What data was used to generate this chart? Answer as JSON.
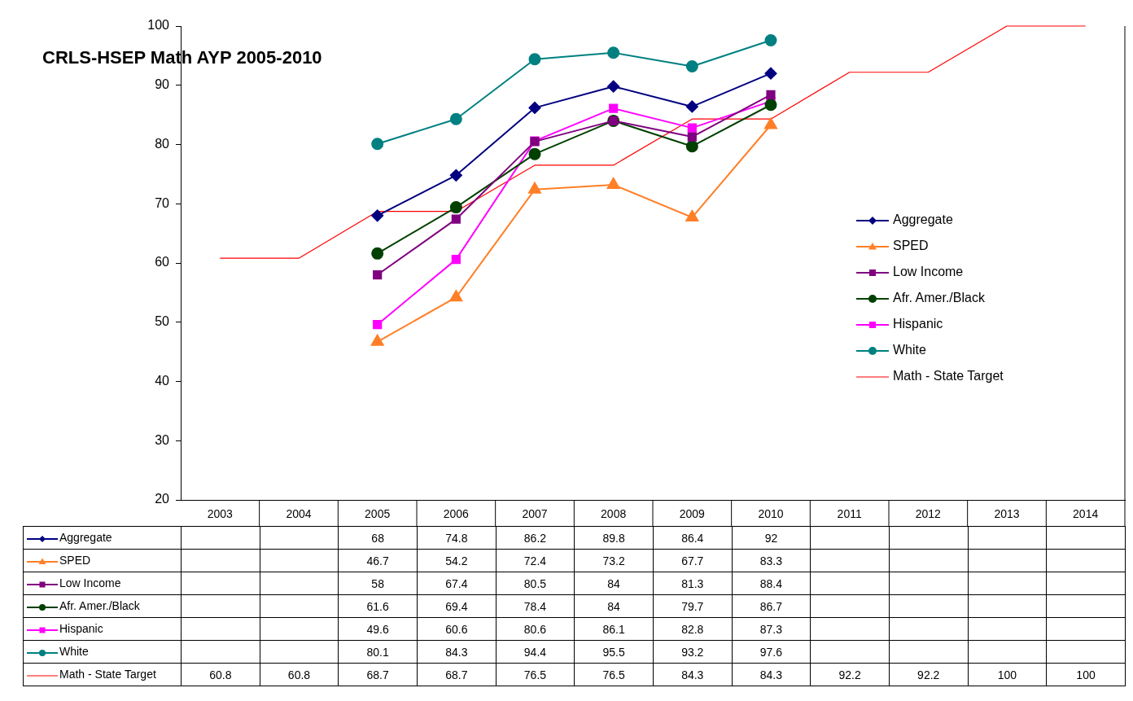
{
  "chart_data": {
    "type": "line",
    "title": "CRLS-HSEP Math AYP 2005-2010",
    "categories": [
      "2003",
      "2004",
      "2005",
      "2006",
      "2007",
      "2008",
      "2009",
      "2010",
      "2011",
      "2012",
      "2013",
      "2014"
    ],
    "series": [
      {
        "name": "Aggregate",
        "color": "#000080",
        "marker": "diamond",
        "values": [
          null,
          null,
          68,
          74.8,
          86.2,
          89.8,
          86.4,
          92,
          null,
          null,
          null,
          null
        ]
      },
      {
        "name": "SPED",
        "color": "#ff7f27",
        "marker": "triangle",
        "values": [
          null,
          null,
          46.7,
          54.2,
          72.4,
          73.2,
          67.7,
          83.3,
          null,
          null,
          null,
          null
        ]
      },
      {
        "name": "Low Income",
        "color": "#800080",
        "marker": "square",
        "values": [
          null,
          null,
          58,
          67.4,
          80.5,
          84,
          81.3,
          88.4,
          null,
          null,
          null,
          null
        ]
      },
      {
        "name": "Afr. Amer./Black",
        "color": "#004000",
        "marker": "circle",
        "values": [
          null,
          null,
          61.6,
          69.4,
          78.4,
          84,
          79.7,
          86.7,
          null,
          null,
          null,
          null
        ]
      },
      {
        "name": "Hispanic",
        "color": "#ff00ff",
        "marker": "square",
        "values": [
          null,
          null,
          49.6,
          60.6,
          80.6,
          86.1,
          82.8,
          87.3,
          null,
          null,
          null,
          null
        ]
      },
      {
        "name": "White",
        "color": "#008080",
        "marker": "circle",
        "values": [
          null,
          null,
          80.1,
          84.3,
          94.4,
          95.5,
          93.2,
          97.6,
          null,
          null,
          null,
          null
        ]
      },
      {
        "name": "Math - State Target",
        "color": "#ff0000",
        "marker": "none",
        "values": [
          60.8,
          60.8,
          68.7,
          68.7,
          76.5,
          76.5,
          84.3,
          84.3,
          92.2,
          92.2,
          100,
          100
        ]
      }
    ],
    "ylim": [
      20,
      100
    ],
    "yticks": [
      20,
      30,
      40,
      50,
      60,
      70,
      80,
      90,
      100
    ],
    "grid": false,
    "legend": "right",
    "data_labels": true,
    "line_style": "solid"
  }
}
